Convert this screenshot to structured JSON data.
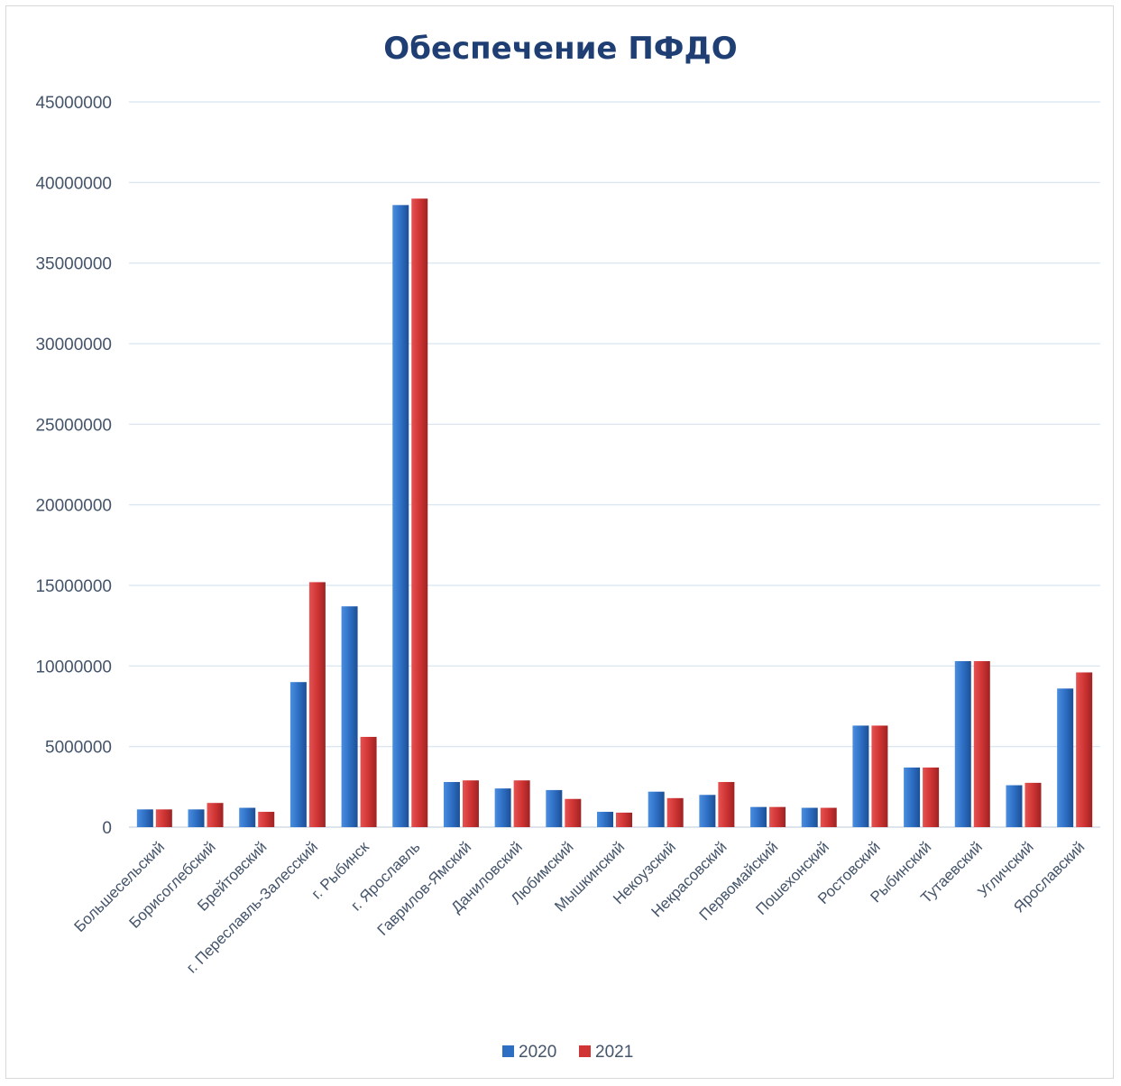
{
  "chart_data": {
    "type": "bar",
    "title": "Обеспечение ПФДО",
    "categories": [
      "Большесельский",
      "Борисоглебский",
      "Брейтовский",
      "г. Переславль-Залесский",
      "г. Рыбинск",
      "г. Ярославль",
      "Гаврилов-Ямский",
      "Даниловский",
      "Любимский",
      "Мышкинский",
      "Некоузский",
      "Некрасовский",
      "Первомайский",
      "Пошехонский",
      "Ростовский",
      "Рыбинский",
      "Тутаевский",
      "Угличский",
      "Ярославский"
    ],
    "series": [
      {
        "name": "2020",
        "color": "#2e6fc4",
        "values": [
          1100000,
          1100000,
          1200000,
          9000000,
          13700000,
          38600000,
          2800000,
          2400000,
          2300000,
          950000,
          2200000,
          2000000,
          1250000,
          1200000,
          6300000,
          3700000,
          10300000,
          2600000,
          8600000
        ]
      },
      {
        "name": "2021",
        "color": "#d03434",
        "values": [
          1100000,
          1500000,
          950000,
          15200000,
          5600000,
          39000000,
          2900000,
          2900000,
          1750000,
          900000,
          1800000,
          2800000,
          1250000,
          1200000,
          6300000,
          3700000,
          10300000,
          2750000,
          9600000
        ]
      }
    ],
    "yticks": [
      "0",
      "5000000",
      "10000000",
      "15000000",
      "20000000",
      "25000000",
      "30000000",
      "35000000",
      "40000000",
      "45000000"
    ],
    "ylim": [
      0,
      45000000
    ],
    "grid": true,
    "legend": "bottom"
  }
}
